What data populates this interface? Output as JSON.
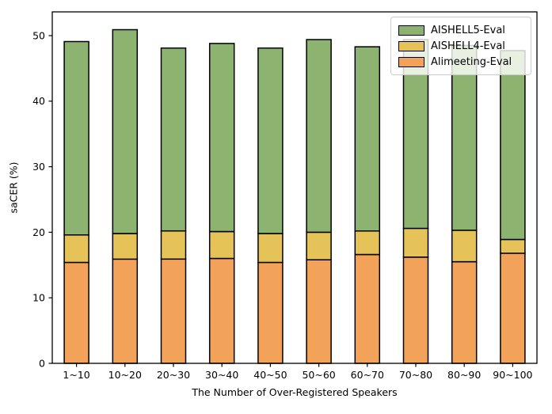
{
  "chart_data": {
    "type": "bar",
    "stacked": true,
    "title": "",
    "xlabel": "The Number of Over-Registered Speakers",
    "ylabel": "saCER (%)",
    "ylim": [
      0,
      53.6
    ],
    "yticks": [
      0,
      10,
      20,
      30,
      40,
      50
    ],
    "grid": false,
    "bar_edge_color": "#000000",
    "categories": [
      "1~10",
      "10~20",
      "20~30",
      "30~40",
      "40~50",
      "50~60",
      "60~70",
      "70~80",
      "80~90",
      "90~100"
    ],
    "series": [
      {
        "name": "Alimeeting-Eval",
        "color": "#f3a259",
        "values": [
          15.4,
          15.9,
          15.9,
          16.0,
          15.4,
          15.8,
          16.6,
          16.2,
          15.5,
          16.8
        ]
      },
      {
        "name": "AISHELL4-Eval",
        "color": "#e5c359",
        "values": [
          4.2,
          3.9,
          4.3,
          4.1,
          4.4,
          4.2,
          3.6,
          4.4,
          4.8,
          2.1
        ]
      },
      {
        "name": "AISHELL5-Eval",
        "color": "#8db370",
        "values": [
          29.5,
          31.1,
          27.9,
          28.7,
          28.3,
          29.4,
          28.1,
          28.8,
          28.2,
          28.8
        ]
      }
    ],
    "stack_totals": [
      49.1,
      50.9,
      48.1,
      48.8,
      48.1,
      49.4,
      48.3,
      49.4,
      48.5,
      47.7
    ],
    "legend_position": "upper right",
    "legend_items": [
      {
        "label": "AISHELL5-Eval",
        "color": "#8db370"
      },
      {
        "label": "AISHELL4-Eval",
        "color": "#e5c359"
      },
      {
        "label": "Alimeeting-Eval",
        "color": "#f3a259"
      }
    ]
  }
}
